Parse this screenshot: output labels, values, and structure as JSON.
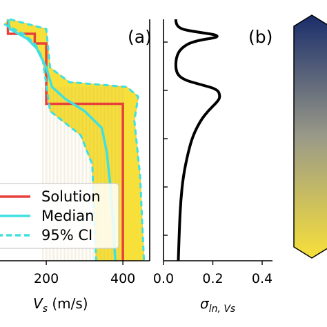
{
  "chart_data": [
    {
      "type": "line",
      "panel_label": "(a)",
      "xlabel_var": "V",
      "xlabel_sub": "s",
      "xlabel_unit": " (m/s)",
      "xticks": [
        "200",
        "400"
      ],
      "xtick_values": [
        200,
        400
      ],
      "xlim": [
        0,
        470
      ],
      "depth_lim": [
        0,
        100
      ],
      "legend": {
        "placement": "lower-left",
        "entries": [
          {
            "label": "Solution",
            "color": "#e8413c",
            "style": "solid"
          },
          {
            "label": "Median",
            "color": "#3fe0e0",
            "style": "solid"
          },
          {
            "label": "95% CI",
            "color": "#3fe0e0",
            "style": "dashed"
          }
        ]
      },
      "colors": {
        "ensemble": "#f7e03a",
        "ensemble_edge": "#e8c820",
        "solution": "#e8413c",
        "median": "#3fe0e0"
      },
      "series": [
        {
          "name": "Solution",
          "points": [
            [
              100,
              0
            ],
            [
              100,
              6
            ],
            [
              170,
              6
            ],
            [
              170,
              10
            ],
            [
              200,
              10
            ],
            [
              200,
              35
            ],
            [
              400,
              35
            ],
            [
              400,
              100
            ]
          ]
        },
        {
          "name": "Median",
          "points": [
            [
              100,
              0
            ],
            [
              105,
              4
            ],
            [
              150,
              8
            ],
            [
              175,
              12
            ],
            [
              200,
              20
            ],
            [
              215,
              28
            ],
            [
              250,
              33
            ],
            [
              300,
              38
            ],
            [
              345,
              45
            ],
            [
              358,
              55
            ],
            [
              368,
              70
            ],
            [
              375,
              85
            ],
            [
              380,
              100
            ]
          ]
        },
        {
          "name": "95% CI",
          "points": [
            [
              90,
              2
            ],
            [
              140,
              6
            ],
            [
              170,
              10
            ],
            [
              190,
              16
            ],
            [
              210,
              38
            ],
            [
              290,
              48
            ],
            [
              320,
              60
            ],
            [
              325,
              80
            ],
            [
              330,
              100
            ]
          ]
        },
        {
          "name": "95% CI upper",
          "points": [
            [
              105,
              0
            ],
            [
              200,
              4
            ],
            [
              210,
              20
            ],
            [
              260,
              26
            ],
            [
              410,
              28
            ],
            [
              440,
              32
            ],
            [
              430,
              42
            ],
            [
              445,
              65
            ],
            [
              455,
              100
            ]
          ]
        }
      ]
    },
    {
      "type": "line",
      "panel_label": "(b)",
      "xlabel_var": "σ",
      "xlabel_sub": "ln, Vs",
      "xticks": [
        "0.0",
        "0.2",
        "0.4"
      ],
      "xtick_values": [
        0.0,
        0.2,
        0.4
      ],
      "xlim": [
        0,
        0.45
      ],
      "depth_lim": [
        0,
        100
      ],
      "series": [
        {
          "name": "",
          "points": [
            [
              0.05,
              0
            ],
            [
              0.05,
              2
            ],
            [
              0.07,
              4
            ],
            [
              0.12,
              5
            ],
            [
              0.25,
              7
            ],
            [
              0.12,
              9
            ],
            [
              0.07,
              12
            ],
            [
              0.05,
              16
            ],
            [
              0.05,
              22
            ],
            [
              0.08,
              25
            ],
            [
              0.15,
              27
            ],
            [
              0.22,
              29
            ],
            [
              0.23,
              32
            ],
            [
              0.22,
              34
            ],
            [
              0.18,
              38
            ],
            [
              0.15,
              42
            ],
            [
              0.12,
              48
            ],
            [
              0.1,
              55
            ],
            [
              0.08,
              65
            ],
            [
              0.07,
              75
            ],
            [
              0.065,
              85
            ],
            [
              0.06,
              100
            ]
          ]
        }
      ]
    },
    {
      "type": "heatmap",
      "panel_label": "",
      "colorbar": {
        "top": "#1a2d6b",
        "middle": "#9a9a88",
        "bottom": "#f7e03a"
      }
    }
  ]
}
